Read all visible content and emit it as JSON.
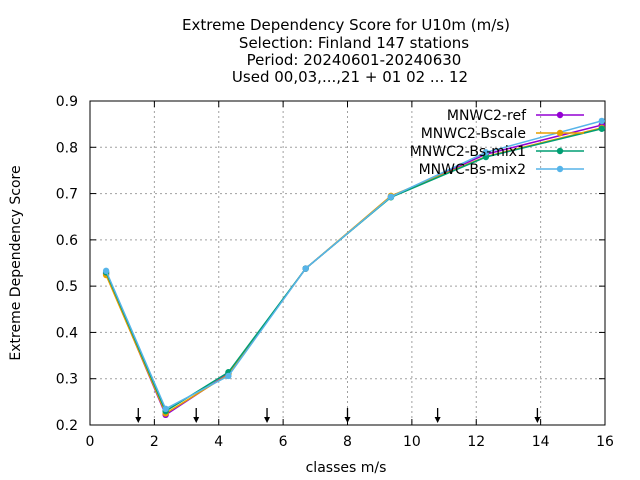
{
  "chart_data": {
    "type": "line",
    "title_lines": [
      "Extreme Dependency Score  for U10m (m/s)",
      "Selection: Finland     147 stations",
      "Period: 20240601-20240630",
      "Used 00,03,...,21 + 01 02 ... 12"
    ],
    "xlabel": "classes m/s",
    "ylabel": "Extreme Dependency Score",
    "xlim": [
      0,
      16
    ],
    "ylim": [
      0.2,
      0.9
    ],
    "xticks": [
      0,
      2,
      4,
      6,
      8,
      10,
      12,
      14,
      16
    ],
    "yticks": [
      0.2,
      0.3,
      0.4,
      0.5,
      0.6,
      0.7,
      0.8,
      0.9
    ],
    "xtick_labels": [
      "0",
      "2",
      "4",
      "6",
      "8",
      "10",
      "12",
      "14",
      "16"
    ],
    "ytick_labels": [
      "0.2",
      "0.3",
      "0.4",
      "0.5",
      "0.6",
      "0.7",
      "0.8",
      "0.9"
    ],
    "grid": true,
    "legend_position": "top-right",
    "class_markers_x": [
      1.5,
      3.3,
      5.5,
      8.0,
      10.8,
      13.9
    ],
    "series": [
      {
        "name": "MNWC2-ref",
        "color": "#9400d3",
        "points": [
          [
            0.5,
            0.527
          ],
          [
            2.35,
            0.222
          ],
          [
            4.3,
            0.311
          ],
          [
            6.7,
            0.538
          ],
          [
            9.35,
            0.693
          ],
          [
            12.3,
            0.785
          ],
          [
            15.9,
            0.848
          ]
        ]
      },
      {
        "name": "MNWC2-Bscale",
        "color": "#e69f00",
        "points": [
          [
            0.5,
            0.524
          ],
          [
            2.35,
            0.225
          ],
          [
            4.3,
            0.309
          ],
          [
            6.7,
            0.538
          ],
          [
            9.35,
            0.695
          ],
          [
            12.3,
            0.78
          ],
          [
            15.9,
            0.842
          ]
        ]
      },
      {
        "name": "MNWC2-Bs-mix1",
        "color": "#009e73",
        "points": [
          [
            0.5,
            0.53
          ],
          [
            2.35,
            0.23
          ],
          [
            4.3,
            0.314
          ],
          [
            6.7,
            0.538
          ],
          [
            9.35,
            0.692
          ],
          [
            12.3,
            0.779
          ],
          [
            15.9,
            0.84
          ]
        ]
      },
      {
        "name": "MNWC-Bs-mix2",
        "color": "#56b4e9",
        "points": [
          [
            0.5,
            0.533
          ],
          [
            2.35,
            0.235
          ],
          [
            4.3,
            0.306
          ],
          [
            6.7,
            0.538
          ],
          [
            9.35,
            0.693
          ],
          [
            12.3,
            0.789
          ],
          [
            15.9,
            0.857
          ]
        ]
      }
    ]
  }
}
